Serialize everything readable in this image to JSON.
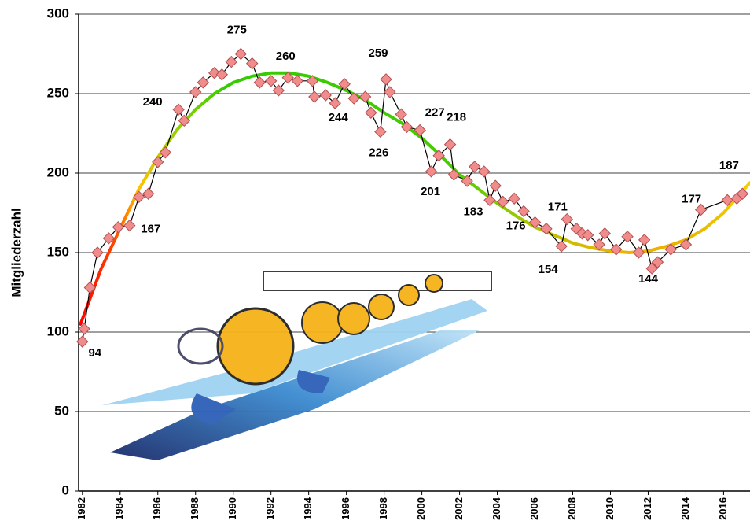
{
  "chart_data": {
    "type": "line",
    "y_label": "Mitgliederzahl",
    "x": [
      1982.0,
      1982.1,
      1982.4,
      1982.8,
      1983.4,
      1983.9,
      1984.5,
      1985.0,
      1985.5,
      1986.0,
      1986.4,
      1987.1,
      1987.4,
      1988.0,
      1988.4,
      1989.0,
      1989.4,
      1989.9,
      1990.4,
      1991.0,
      1991.4,
      1992.0,
      1992.4,
      1992.9,
      1993.4,
      1994.2,
      1994.3,
      1994.9,
      1995.4,
      1995.9,
      1996.4,
      1997.0,
      1997.3,
      1997.8,
      1998.1,
      1998.3,
      1998.9,
      1999.2,
      1999.9,
      2000.5,
      2000.9,
      2001.5,
      2001.7,
      2002.4,
      2002.8,
      2003.3,
      2003.6,
      2003.9,
      2004.3,
      2004.9,
      2005.4,
      2006.0,
      2006.6,
      2007.4,
      2007.7,
      2008.2,
      2008.5,
      2008.8,
      2009.4,
      2009.7,
      2010.3,
      2010.9,
      2011.5,
      2011.8,
      2012.2,
      2012.5,
      2013.2,
      2014.0,
      2014.8,
      2016.2,
      2016.7,
      2017.0
    ],
    "values": [
      94,
      102,
      128,
      150,
      159,
      166,
      167,
      185,
      187,
      207,
      213,
      240,
      233,
      251,
      257,
      263,
      262,
      270,
      275,
      269,
      257,
      258,
      252,
      260,
      258,
      258,
      248,
      249,
      244,
      256,
      247,
      248,
      238,
      226,
      259,
      251,
      237,
      229,
      227,
      201,
      211,
      218,
      199,
      195,
      204,
      201,
      183,
      192,
      182,
      184,
      176,
      169,
      165,
      154,
      171,
      165,
      162,
      161,
      155,
      162,
      152,
      160,
      150,
      158,
      140,
      144,
      152,
      155,
      177,
      183,
      184,
      187
    ],
    "marker_color": "#f08c8c",
    "line_color": "#000000",
    "labeled_points": [
      0,
      6,
      11,
      18,
      23,
      28,
      33,
      34,
      38,
      39,
      41,
      46,
      50,
      53,
      54,
      65,
      68,
      71
    ],
    "trend": {
      "x": [
        1981.9,
        1983,
        1984,
        1985,
        1986,
        1987,
        1988,
        1989,
        1990,
        1991,
        1992,
        1992.5,
        1993,
        1994,
        1995,
        1996,
        1997,
        1998,
        1999,
        2000,
        2001,
        2002,
        2003,
        2004,
        2005,
        2006,
        2007,
        2008,
        2009,
        2010,
        2011,
        2012,
        2013,
        2014,
        2015,
        2016,
        2017.4
      ],
      "values": [
        105,
        140,
        165,
        190,
        210,
        227,
        240,
        250,
        257,
        261,
        263,
        263,
        263,
        261,
        257,
        252,
        246,
        238,
        231,
        222,
        211,
        199,
        190,
        181,
        173,
        166,
        161,
        156,
        153,
        151,
        150,
        151,
        154,
        158,
        165,
        175,
        194
      ]
    },
    "xlim": [
      1981.8,
      2017.4
    ],
    "xticks": [
      1982,
      1984,
      1986,
      1988,
      1990,
      1992,
      1994,
      1996,
      1998,
      2000,
      2002,
      2004,
      2006,
      2008,
      2010,
      2012,
      2014,
      2016
    ],
    "ylim": [
      0,
      300
    ],
    "yticks": [
      0,
      50,
      100,
      150,
      200,
      250,
      300
    ],
    "grid": true
  }
}
